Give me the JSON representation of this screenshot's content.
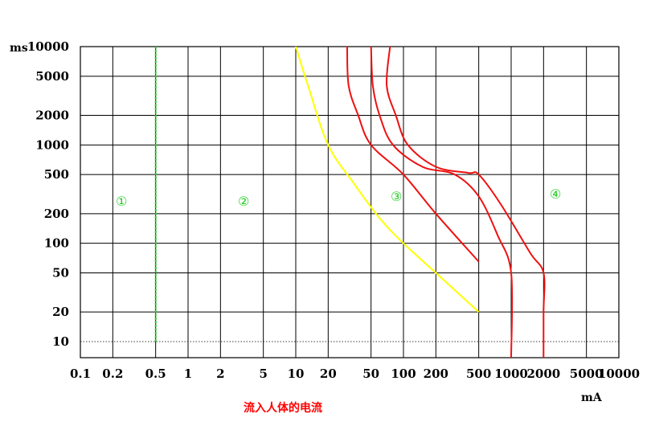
{
  "chart_data": {
    "type": "line",
    "title": "",
    "xlabel": "流入人体的电流",
    "x_unit": "mA",
    "y_unit": "ms",
    "x_scale": "log",
    "y_scale": "log",
    "xlim": [
      0.1,
      10000
    ],
    "ylim": [
      10,
      10000
    ],
    "x_ticks": [
      0.1,
      0.2,
      0.5,
      1,
      2,
      5,
      10,
      20,
      50,
      100,
      200,
      500,
      1000,
      2000,
      5000,
      10000
    ],
    "x_tick_labels": [
      "0.1",
      "0.2",
      "0.5",
      "1",
      "2",
      "5",
      "10",
      "20",
      "50",
      "100",
      "200",
      "500",
      "1000",
      "2000",
      "5000",
      "10000"
    ],
    "y_ticks": [
      10,
      20,
      50,
      100,
      200,
      500,
      1000,
      2000,
      5000,
      10000
    ],
    "y_tick_labels": [
      "10",
      "20",
      "50",
      "100",
      "200",
      "500",
      "1000",
      "2000",
      "5000",
      "10000"
    ],
    "grid": true,
    "zones": [
      "①",
      "②",
      "③",
      "④"
    ],
    "series": [
      {
        "color": "#22cc22",
        "dashed": true,
        "x": [
          0.5,
          0.5
        ],
        "y": [
          10,
          10000
        ]
      },
      {
        "color": "#ffff00",
        "dashed": false,
        "x": [
          10,
          13,
          20,
          35,
          60,
          100,
          200,
          500
        ],
        "y": [
          10000,
          4000,
          1000,
          400,
          180,
          100,
          50,
          20
        ]
      },
      {
        "color": "#ee1111",
        "dashed": false,
        "x": [
          30,
          31,
          38,
          50,
          100,
          200,
          500
        ],
        "y": [
          10000,
          4000,
          2000,
          1000,
          500,
          200,
          65
        ]
      },
      {
        "color": "#ee1111",
        "dashed": false,
        "x": [
          50,
          52,
          60,
          80,
          150,
          300,
          500,
          750,
          1000,
          1000
        ],
        "y": [
          10000,
          4000,
          2000,
          1000,
          600,
          500,
          300,
          120,
          50,
          10
        ]
      },
      {
        "color": "#ee1111",
        "dashed": false,
        "x": [
          75,
          70,
          85,
          110,
          200,
          400,
          500,
          800,
          1500,
          2000,
          2000,
          2000
        ],
        "y": [
          10000,
          4000,
          2000,
          1000,
          600,
          520,
          500,
          250,
          80,
          50,
          20,
          10
        ]
      }
    ],
    "reference_line": {
      "y": 10,
      "style": "dotted"
    }
  }
}
